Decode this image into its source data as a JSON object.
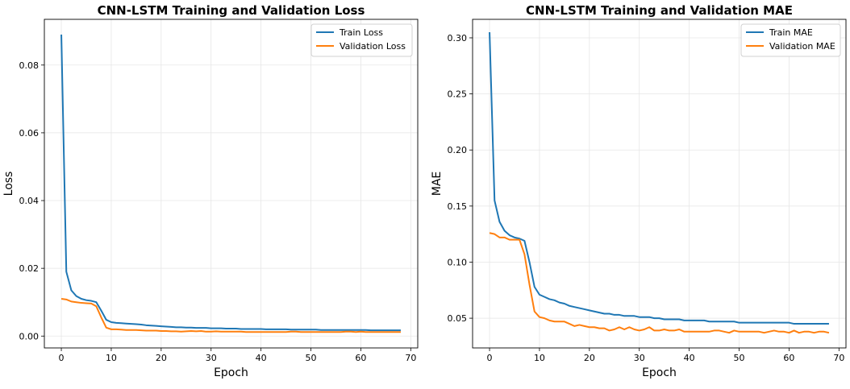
{
  "colors": {
    "train": "#1f77b4",
    "validation": "#ff7f0e",
    "grid": "#e6e6e6"
  },
  "chart_data": [
    {
      "type": "line",
      "title": "CNN-LSTM Training and Validation Loss",
      "xlabel": "Epoch",
      "ylabel": "Loss",
      "xlim": [
        -3.4,
        71.4
      ],
      "ylim": [
        -0.0035,
        0.0935
      ],
      "xticks": [
        "0",
        "10",
        "20",
        "30",
        "40",
        "50",
        "60",
        "70"
      ],
      "yticks": [
        "0.00",
        "0.02",
        "0.04",
        "0.06",
        "0.08"
      ],
      "grid": true,
      "legend": "top-right",
      "x": [
        0,
        1,
        2,
        3,
        4,
        5,
        6,
        7,
        8,
        9,
        10,
        11,
        12,
        13,
        14,
        15,
        16,
        17,
        18,
        19,
        20,
        21,
        22,
        23,
        24,
        25,
        26,
        27,
        28,
        29,
        30,
        31,
        32,
        33,
        34,
        35,
        36,
        37,
        38,
        39,
        40,
        41,
        42,
        43,
        44,
        45,
        46,
        47,
        48,
        49,
        50,
        51,
        52,
        53,
        54,
        55,
        56,
        57,
        58,
        59,
        60,
        61,
        62,
        63,
        64,
        65,
        66,
        67,
        68
      ],
      "series": [
        {
          "name": "Train Loss",
          "color": "#1f77b4",
          "values": [
            0.089,
            0.019,
            0.0135,
            0.0118,
            0.011,
            0.0106,
            0.0104,
            0.01,
            0.0075,
            0.0048,
            0.0041,
            0.0039,
            0.0038,
            0.0037,
            0.0036,
            0.0035,
            0.0034,
            0.0032,
            0.0031,
            0.003,
            0.0029,
            0.0028,
            0.0027,
            0.0026,
            0.0026,
            0.0025,
            0.0025,
            0.0024,
            0.0024,
            0.0024,
            0.0023,
            0.0023,
            0.0023,
            0.0022,
            0.0022,
            0.0022,
            0.0021,
            0.0021,
            0.0021,
            0.0021,
            0.0021,
            0.002,
            0.002,
            0.002,
            0.002,
            0.002,
            0.0019,
            0.0019,
            0.0019,
            0.0019,
            0.0019,
            0.0019,
            0.0018,
            0.0018,
            0.0018,
            0.0018,
            0.0018,
            0.0018,
            0.0018,
            0.0018,
            0.0018,
            0.0018,
            0.0017,
            0.0017,
            0.0017,
            0.0017,
            0.0017,
            0.0017,
            0.0017
          ]
        },
        {
          "name": "Validation Loss",
          "color": "#ff7f0e",
          "values": [
            0.011,
            0.0108,
            0.0102,
            0.01,
            0.0098,
            0.0097,
            0.0096,
            0.0088,
            0.0055,
            0.0025,
            0.002,
            0.002,
            0.0019,
            0.0018,
            0.0018,
            0.0018,
            0.0017,
            0.0016,
            0.0016,
            0.0016,
            0.0015,
            0.0015,
            0.0014,
            0.0014,
            0.0013,
            0.0014,
            0.0015,
            0.0014,
            0.0015,
            0.0013,
            0.0013,
            0.0014,
            0.0013,
            0.0013,
            0.0013,
            0.0013,
            0.0013,
            0.0012,
            0.0012,
            0.0012,
            0.0012,
            0.0012,
            0.0012,
            0.0012,
            0.0012,
            0.0012,
            0.0013,
            0.0013,
            0.0012,
            0.0012,
            0.0012,
            0.0012,
            0.0012,
            0.0012,
            0.0012,
            0.0012,
            0.0012,
            0.0013,
            0.0013,
            0.0012,
            0.0013,
            0.0012,
            0.0012,
            0.0012,
            0.0012,
            0.0012,
            0.0012,
            0.0012,
            0.0012
          ]
        }
      ]
    },
    {
      "type": "line",
      "title": "CNN-LSTM Training and Validation MAE",
      "xlabel": "Epoch",
      "ylabel": "MAE",
      "xlim": [
        -3.4,
        71.4
      ],
      "ylim": [
        0.0235,
        0.3165
      ],
      "xticks": [
        "0",
        "10",
        "20",
        "30",
        "40",
        "50",
        "60",
        "70"
      ],
      "yticks": [
        "0.05",
        "0.10",
        "0.15",
        "0.20",
        "0.25",
        "0.30"
      ],
      "grid": true,
      "legend": "top-right",
      "x": [
        0,
        1,
        2,
        3,
        4,
        5,
        6,
        7,
        8,
        9,
        10,
        11,
        12,
        13,
        14,
        15,
        16,
        17,
        18,
        19,
        20,
        21,
        22,
        23,
        24,
        25,
        26,
        27,
        28,
        29,
        30,
        31,
        32,
        33,
        34,
        35,
        36,
        37,
        38,
        39,
        40,
        41,
        42,
        43,
        44,
        45,
        46,
        47,
        48,
        49,
        50,
        51,
        52,
        53,
        54,
        55,
        56,
        57,
        58,
        59,
        60,
        61,
        62,
        63,
        64,
        65,
        66,
        67,
        68
      ],
      "series": [
        {
          "name": "Train MAE",
          "color": "#1f77b4",
          "values": [
            0.305,
            0.155,
            0.136,
            0.128,
            0.124,
            0.122,
            0.121,
            0.119,
            0.1,
            0.078,
            0.071,
            0.069,
            0.067,
            0.066,
            0.064,
            0.063,
            0.061,
            0.06,
            0.059,
            0.058,
            0.057,
            0.056,
            0.055,
            0.054,
            0.054,
            0.053,
            0.053,
            0.052,
            0.052,
            0.052,
            0.051,
            0.051,
            0.051,
            0.05,
            0.05,
            0.049,
            0.049,
            0.049,
            0.049,
            0.048,
            0.048,
            0.048,
            0.048,
            0.048,
            0.047,
            0.047,
            0.047,
            0.047,
            0.047,
            0.047,
            0.046,
            0.046,
            0.046,
            0.046,
            0.046,
            0.046,
            0.046,
            0.046,
            0.046,
            0.046,
            0.046,
            0.045,
            0.045,
            0.045,
            0.045,
            0.045,
            0.045,
            0.045,
            0.045
          ]
        },
        {
          "name": "Validation MAE",
          "color": "#ff7f0e",
          "values": [
            0.126,
            0.125,
            0.122,
            0.122,
            0.12,
            0.12,
            0.12,
            0.107,
            0.08,
            0.056,
            0.051,
            0.05,
            0.048,
            0.047,
            0.047,
            0.047,
            0.045,
            0.043,
            0.044,
            0.043,
            0.042,
            0.042,
            0.041,
            0.041,
            0.039,
            0.04,
            0.042,
            0.04,
            0.042,
            0.04,
            0.039,
            0.04,
            0.042,
            0.039,
            0.039,
            0.04,
            0.039,
            0.039,
            0.04,
            0.038,
            0.038,
            0.038,
            0.038,
            0.038,
            0.038,
            0.039,
            0.039,
            0.038,
            0.037,
            0.039,
            0.038,
            0.038,
            0.038,
            0.038,
            0.038,
            0.037,
            0.038,
            0.039,
            0.038,
            0.038,
            0.037,
            0.039,
            0.037,
            0.038,
            0.038,
            0.037,
            0.038,
            0.038,
            0.037
          ]
        }
      ]
    }
  ]
}
